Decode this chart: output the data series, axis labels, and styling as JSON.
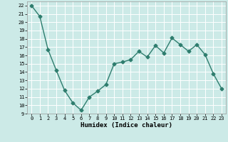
{
  "x": [
    0,
    1,
    2,
    3,
    4,
    5,
    6,
    7,
    8,
    9,
    10,
    11,
    12,
    13,
    14,
    15,
    16,
    17,
    18,
    19,
    20,
    21,
    22,
    23
  ],
  "y": [
    22,
    20.7,
    16.7,
    14.2,
    11.8,
    10.3,
    9.4,
    11.0,
    11.7,
    12.5,
    15.0,
    15.2,
    15.5,
    16.5,
    15.8,
    17.2,
    16.3,
    18.1,
    17.3,
    16.5,
    17.3,
    16.1,
    13.8,
    12.0
  ],
  "line_color": "#2e7d6e",
  "marker": "D",
  "markersize": 2.5,
  "linewidth": 1.0,
  "xlabel": "Humidex (Indice chaleur)",
  "xlim": [
    -0.5,
    23.5
  ],
  "ylim": [
    9,
    22.5
  ],
  "yticks": [
    9,
    10,
    11,
    12,
    13,
    14,
    15,
    16,
    17,
    18,
    19,
    20,
    21,
    22
  ],
  "xticks": [
    0,
    1,
    2,
    3,
    4,
    5,
    6,
    7,
    8,
    9,
    10,
    11,
    12,
    13,
    14,
    15,
    16,
    17,
    18,
    19,
    20,
    21,
    22,
    23
  ],
  "bg_color": "#cceae7",
  "grid_color": "#ffffff",
  "label_fontsize": 6.5,
  "tick_fontsize": 5.0
}
